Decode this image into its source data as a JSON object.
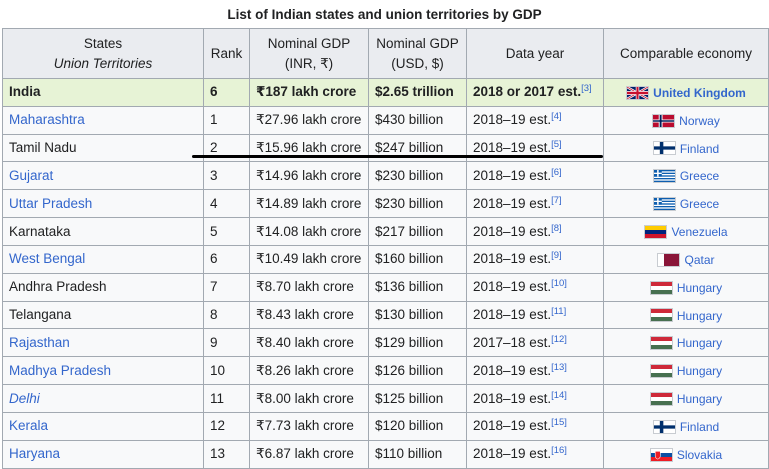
{
  "caption": "List of Indian states and union territories by GDP",
  "headers": {
    "state_line1": "States",
    "state_line2": "Union Territories",
    "rank": "Rank",
    "inr_line1": "Nominal GDP",
    "inr_line2": "(INR, ₹)",
    "usd_line1": "Nominal GDP",
    "usd_line2": "(USD, $)",
    "year": "Data year",
    "economy": "Comparable economy"
  },
  "rows": [
    {
      "state": "India",
      "rank": "6",
      "inr": "₹187 lakh crore",
      "usd": "$2.65 trillion",
      "year": "2018 or 2017 est.",
      "ref": "[3]",
      "economy": "United Kingdom",
      "flag": "uk-flag-icon"
    },
    {
      "state": "Maharashtra",
      "rank": "1",
      "inr": "₹27.96 lakh crore",
      "usd": "$430 billion",
      "year": "2018–19 est.",
      "ref": "[4]",
      "economy": "Norway",
      "flag": "norway-flag-icon"
    },
    {
      "state": "Tamil Nadu",
      "rank": "2",
      "inr": "₹15.96 lakh crore",
      "usd": "$247 billion",
      "year": "2018–19 est.",
      "ref": "[5]",
      "economy": "Finland",
      "flag": "finland-flag-icon"
    },
    {
      "state": "Gujarat",
      "rank": "3",
      "inr": "₹14.96 lakh crore",
      "usd": "$230 billion",
      "year": "2018–19 est.",
      "ref": "[6]",
      "economy": "Greece",
      "flag": "greece-flag-icon"
    },
    {
      "state": "Uttar Pradesh",
      "rank": "4",
      "inr": "₹14.89 lakh crore",
      "usd": "$230 billion",
      "year": "2018–19 est.",
      "ref": "[7]",
      "economy": "Greece",
      "flag": "greece-flag-icon"
    },
    {
      "state": "Karnataka",
      "rank": "5",
      "inr": "₹14.08 lakh crore",
      "usd": "$217 billion",
      "year": "2018–19 est.",
      "ref": "[8]",
      "economy": "Venezuela",
      "flag": "venezuela-flag-icon"
    },
    {
      "state": "West Bengal",
      "rank": "6",
      "inr": "₹10.49 lakh crore",
      "usd": "$160 billion",
      "year": "2018–19 est.",
      "ref": "[9]",
      "economy": "Qatar",
      "flag": "qatar-flag-icon"
    },
    {
      "state": "Andhra Pradesh",
      "rank": "7",
      "inr": "₹8.70 lakh crore",
      "usd": "$136 billion",
      "year": "2018–19 est.",
      "ref": "[10]",
      "economy": "Hungary",
      "flag": "hungary-flag-icon"
    },
    {
      "state": "Telangana",
      "rank": "8",
      "inr": "₹8.43 lakh crore",
      "usd": "$130 billion",
      "year": "2018–19 est.",
      "ref": "[11]",
      "economy": "Hungary",
      "flag": "hungary-flag-icon"
    },
    {
      "state": "Rajasthan",
      "rank": "9",
      "inr": "₹8.40 lakh crore",
      "usd": "$129 billion",
      "year": "2017–18 est.",
      "ref": "[12]",
      "economy": "Hungary",
      "flag": "hungary-flag-icon"
    },
    {
      "state": "Madhya Pradesh",
      "rank": "10",
      "inr": "₹8.26 lakh crore",
      "usd": "$126 billion",
      "year": "2018–19 est.",
      "ref": "[13]",
      "economy": "Hungary",
      "flag": "hungary-flag-icon"
    },
    {
      "state": "Delhi",
      "rank": "11",
      "inr": "₹8.00 lakh crore",
      "usd": "$125 billion",
      "year": "2018–19 est.",
      "ref": "[14]",
      "economy": "Hungary",
      "flag": "hungary-flag-icon"
    },
    {
      "state": "Kerala",
      "rank": "12",
      "inr": "₹7.73 lakh crore",
      "usd": "$120 billion",
      "year": "2018–19 est.",
      "ref": "[15]",
      "economy": "Finland",
      "flag": "finland-flag-icon"
    },
    {
      "state": "Haryana",
      "rank": "13",
      "inr": "₹6.87 lakh crore",
      "usd": "$110 billion",
      "year": "2018–19 est.",
      "ref": "[16]",
      "economy": "Slovakia",
      "flag": "slovakia-flag-icon"
    }
  ],
  "colors": {
    "link": "#3366cc",
    "header_bg": "#eaecf0",
    "highlight_bg": "#e7f3d6",
    "border": "#a2a9b1"
  }
}
